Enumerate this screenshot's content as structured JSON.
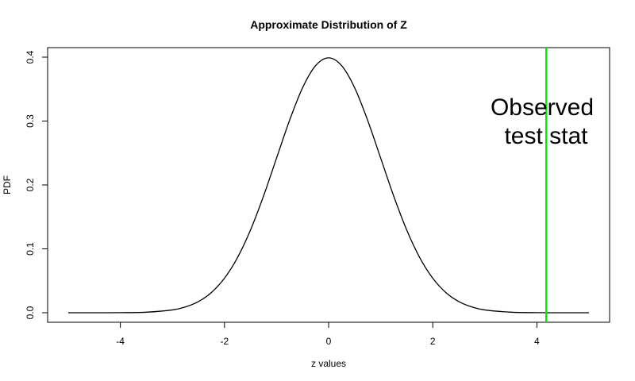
{
  "chart_data": {
    "type": "line",
    "title": "Approximate Distribution of Z",
    "xlabel": "z values",
    "ylabel": "PDF",
    "xlim": [
      -5,
      5
    ],
    "ylim": [
      0,
      0.4
    ],
    "x_ticks": [
      "-4",
      "-2",
      "0",
      "2",
      "4"
    ],
    "y_ticks": [
      "0.0",
      "0.1",
      "0.2",
      "0.3",
      "0.4"
    ],
    "grid": false,
    "series": [
      {
        "x": [
          -5,
          -4.5,
          -4,
          -3.5,
          -3,
          -2.75,
          -2.5,
          -2.25,
          -2,
          -1.75,
          -1.5,
          -1.25,
          -1,
          -0.75,
          -0.5,
          -0.25,
          0,
          0.25,
          0.5,
          0.75,
          1,
          1.25,
          1.5,
          1.75,
          2,
          2.25,
          2.5,
          2.75,
          3,
          3.5,
          4,
          4.5,
          5
        ],
        "y": [
          1.5e-06,
          1.6e-05,
          0.000134,
          0.000873,
          0.00443,
          0.00909,
          0.0175,
          0.0317,
          0.054,
          0.0863,
          0.1295,
          0.1826,
          0.242,
          0.3011,
          0.3521,
          0.3867,
          0.3989,
          0.3867,
          0.3521,
          0.3011,
          0.242,
          0.1826,
          0.1295,
          0.0863,
          0.054,
          0.0317,
          0.0175,
          0.00909,
          0.00443,
          0.000873,
          0.000134,
          1.6e-05,
          1.5e-06
        ],
        "color": "#000000"
      }
    ],
    "vline": {
      "x": 4.18,
      "color": "#00ee00"
    },
    "annotation": {
      "line1": "Observed",
      "line2": "test stat",
      "x": 4.1,
      "y": 0.3
    }
  }
}
